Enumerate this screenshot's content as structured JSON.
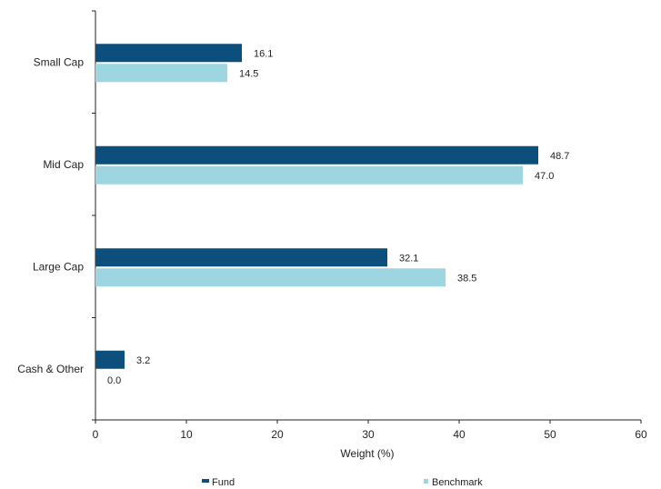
{
  "chart_data": {
    "type": "bar",
    "orientation": "horizontal",
    "categories": [
      "Small Cap",
      "Mid Cap",
      "Large Cap",
      "Cash & Other"
    ],
    "series": [
      {
        "name": "Fund",
        "values": [
          16.1,
          48.7,
          32.1,
          3.2
        ],
        "labels": [
          "16.1",
          "48.7",
          "32.1",
          "3.2"
        ],
        "color": "#0d4f7c"
      },
      {
        "name": "Benchmark",
        "values": [
          14.5,
          47.0,
          38.5,
          0.0
        ],
        "labels": [
          "14.5",
          "47.0",
          "38.5",
          "0.0"
        ],
        "color": "#9dd6e0"
      }
    ],
    "xlabel": "Weight (%)",
    "xlim": [
      0,
      60
    ],
    "xticks": [
      "0",
      "10",
      "20",
      "30",
      "40",
      "50",
      "60"
    ],
    "grid": false,
    "legend_position": "bottom"
  }
}
